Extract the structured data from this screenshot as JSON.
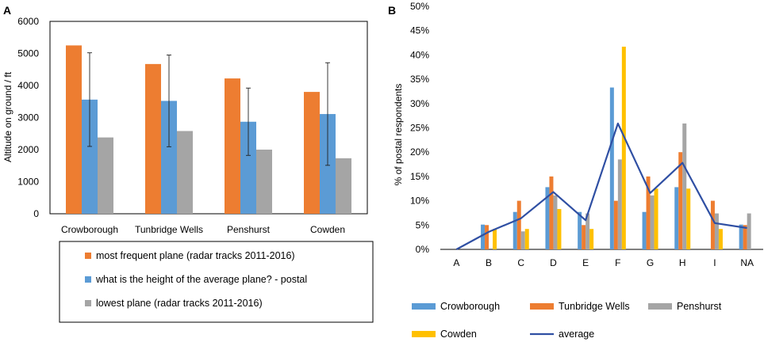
{
  "chart_data": [
    {
      "panel": "A",
      "type": "bar",
      "ylabel": "Altitude on ground / ft",
      "ylim": [
        0,
        6000
      ],
      "yticks": [
        0,
        1000,
        2000,
        3000,
        4000,
        5000,
        6000
      ],
      "categories": [
        "Crowborough",
        "Tunbridge Wells",
        "Penshurst",
        "Cowden"
      ],
      "series": [
        {
          "name": "most frequent plane (radar tracks 2011-2016)",
          "color": "#ed7d31",
          "values": [
            5250,
            4670,
            4220,
            3800
          ]
        },
        {
          "name": "what is the height of the average plane? - postal",
          "color": "#5b9bd5",
          "values": [
            3560,
            3520,
            2870,
            3110
          ],
          "error": [
            1460,
            1430,
            1050,
            1600
          ]
        },
        {
          "name": "lowest plane (radar tracks 2011-2016)",
          "color": "#a5a5a5",
          "values": [
            2380,
            2580,
            2000,
            1730
          ]
        }
      ]
    },
    {
      "panel": "B",
      "type": "bar",
      "ylabel": "% of postal respondents",
      "ylim": [
        0,
        50
      ],
      "yticks": [
        "0%",
        "5%",
        "10%",
        "15%",
        "20%",
        "25%",
        "30%",
        "35%",
        "40%",
        "45%",
        "50%"
      ],
      "categories": [
        "A",
        "B",
        "C",
        "D",
        "E",
        "F",
        "G",
        "H",
        "I",
        "NA"
      ],
      "series": [
        {
          "name": "Crowborough",
          "color": "#5b9bd5",
          "values": [
            0,
            5.1,
            7.7,
            12.8,
            7.7,
            33.3,
            7.7,
            12.8,
            0,
            5.1
          ]
        },
        {
          "name": "Tunbridge Wells",
          "color": "#ed7d31",
          "values": [
            0,
            5.0,
            10.0,
            15.0,
            5.0,
            10.0,
            15.0,
            20.0,
            10.0,
            5.0
          ]
        },
        {
          "name": "Penshurst",
          "color": "#a5a5a5",
          "values": [
            0,
            0,
            3.7,
            11.1,
            7.4,
            18.5,
            11.1,
            25.9,
            7.4,
            7.4
          ]
        },
        {
          "name": "Cowden",
          "color": "#ffc000",
          "values": [
            0,
            4.2,
            4.2,
            8.3,
            4.2,
            41.7,
            12.5,
            12.5,
            4.2,
            0
          ]
        }
      ],
      "line": {
        "name": "average",
        "color": "#2f4fa3",
        "values": [
          0,
          3.6,
          6.4,
          11.8,
          6.0,
          25.9,
          11.6,
          17.8,
          5.4,
          4.4
        ]
      }
    }
  ]
}
